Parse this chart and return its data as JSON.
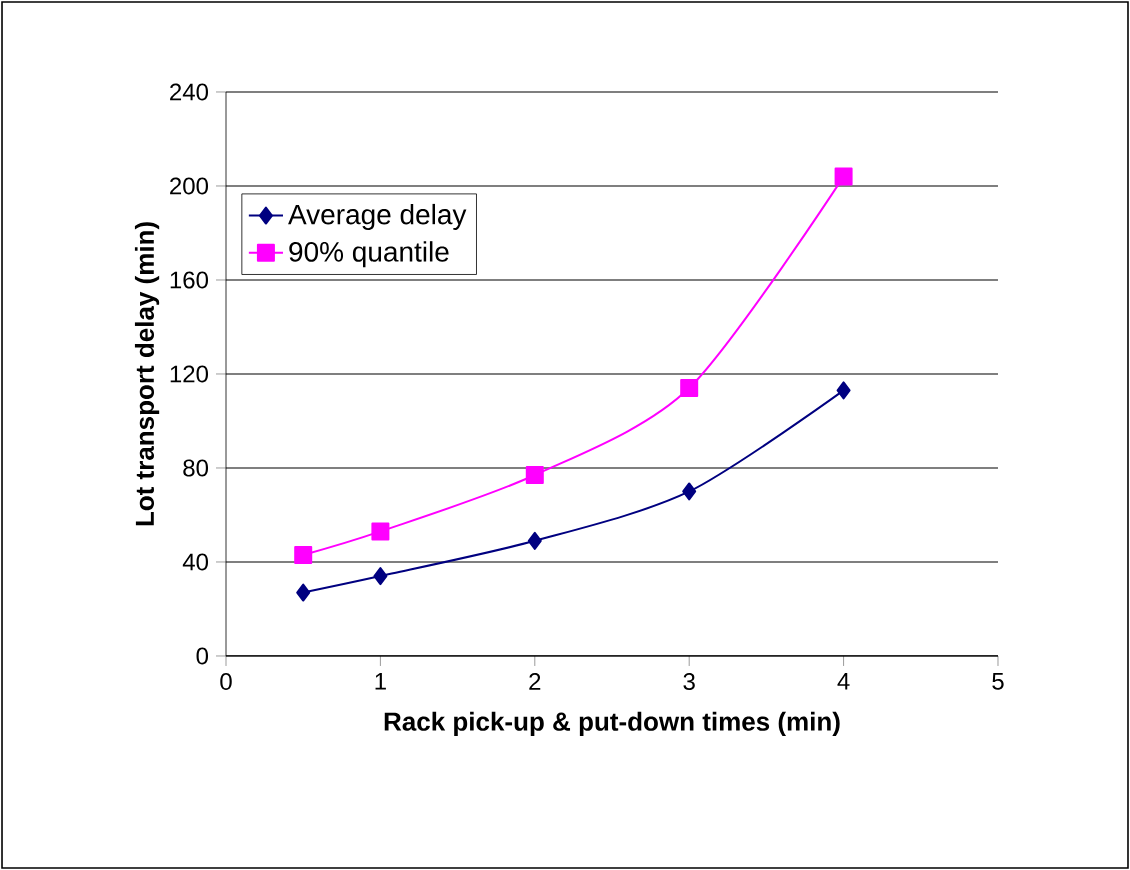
{
  "chart_data": {
    "type": "line",
    "xlabel": "Rack pick-up & put-down times (min)",
    "ylabel": "Lot transport delay  (min)",
    "x": [
      0.5,
      1,
      2,
      3,
      4
    ],
    "series": [
      {
        "name": "Average delay",
        "color": "#000080",
        "marker": "diamond",
        "values": [
          27,
          34,
          49,
          70,
          113
        ]
      },
      {
        "name": "90% quantile",
        "color": "#ff00ff",
        "marker": "square",
        "values": [
          43,
          53,
          77,
          114,
          204
        ]
      }
    ],
    "xlim": [
      0,
      5
    ],
    "xticks": [
      0,
      1,
      2,
      3,
      4,
      5
    ],
    "ylim": [
      0,
      240
    ],
    "yticks": [
      0,
      40,
      80,
      120,
      160,
      200,
      240
    ],
    "grid": "y",
    "legend": "top left",
    "line_style": "solid"
  }
}
